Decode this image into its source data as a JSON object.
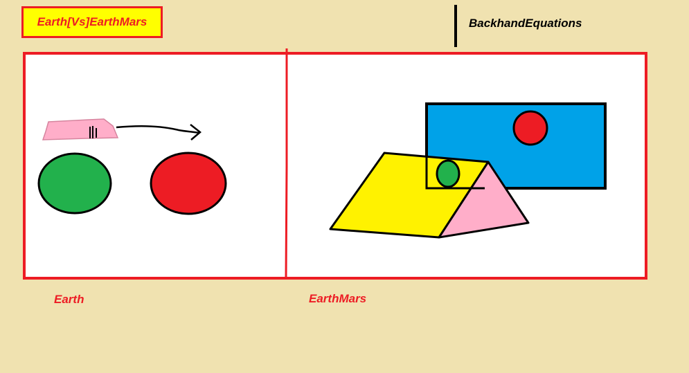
{
  "header": {
    "title": "Earth[Vs]EarthMars",
    "side_label": "BackhandEquations"
  },
  "panels": {
    "left_caption": "Earth",
    "right_caption": "EarthMars"
  },
  "colors": {
    "background": "#f0e2b0",
    "frame": "#ed1c24",
    "title_fill": "#ffff00",
    "green": "#22b14c",
    "red": "#ed1c24",
    "blue": "#00a2e8",
    "yellow": "#fff200",
    "pink": "#ffaec9"
  }
}
